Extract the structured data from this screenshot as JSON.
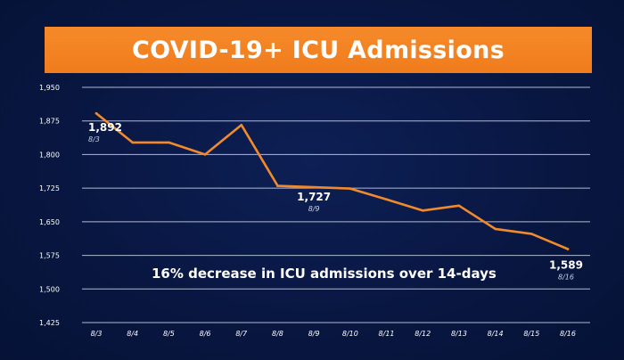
{
  "title": "COVID-19+ ICU Admissions",
  "colors": {
    "background": "#0a1a44",
    "banner": "#f58a2a",
    "line": "#f08a2c",
    "grid": "#cfd6ea",
    "text": "#ffffff"
  },
  "chart_data": {
    "type": "line",
    "title": "COVID-19+ ICU Admissions",
    "xlabel": "",
    "ylabel": "",
    "categories": [
      "8/3",
      "8/4",
      "8/5",
      "8/6",
      "8/7",
      "8/8",
      "8/9",
      "8/10",
      "8/11",
      "8/12",
      "8/13",
      "8/14",
      "8/15",
      "8/16"
    ],
    "series": [
      {
        "values": [
          1892,
          1827,
          1827,
          1800,
          1866,
          1730,
          1727,
          1724,
          1700,
          1675,
          1686,
          1634,
          1623,
          1589
        ]
      }
    ],
    "ylim": [
      1425,
      1950
    ],
    "yticks": [
      "1,425",
      "1,500",
      "1,575",
      "1,650",
      "1,725",
      "1,800",
      "1,875",
      "1,950"
    ],
    "ytick_values": [
      1425,
      1500,
      1575,
      1650,
      1725,
      1800,
      1875,
      1950
    ],
    "grid": true,
    "data_labels": [
      {
        "index": 0,
        "value": "1,892",
        "date": "8/3"
      },
      {
        "index": 6,
        "value": "1,727",
        "date": "8/9"
      },
      {
        "index": 13,
        "value": "1,589",
        "date": "8/16"
      }
    ],
    "annotation": "16% decrease in ICU admissions over 14-days"
  }
}
